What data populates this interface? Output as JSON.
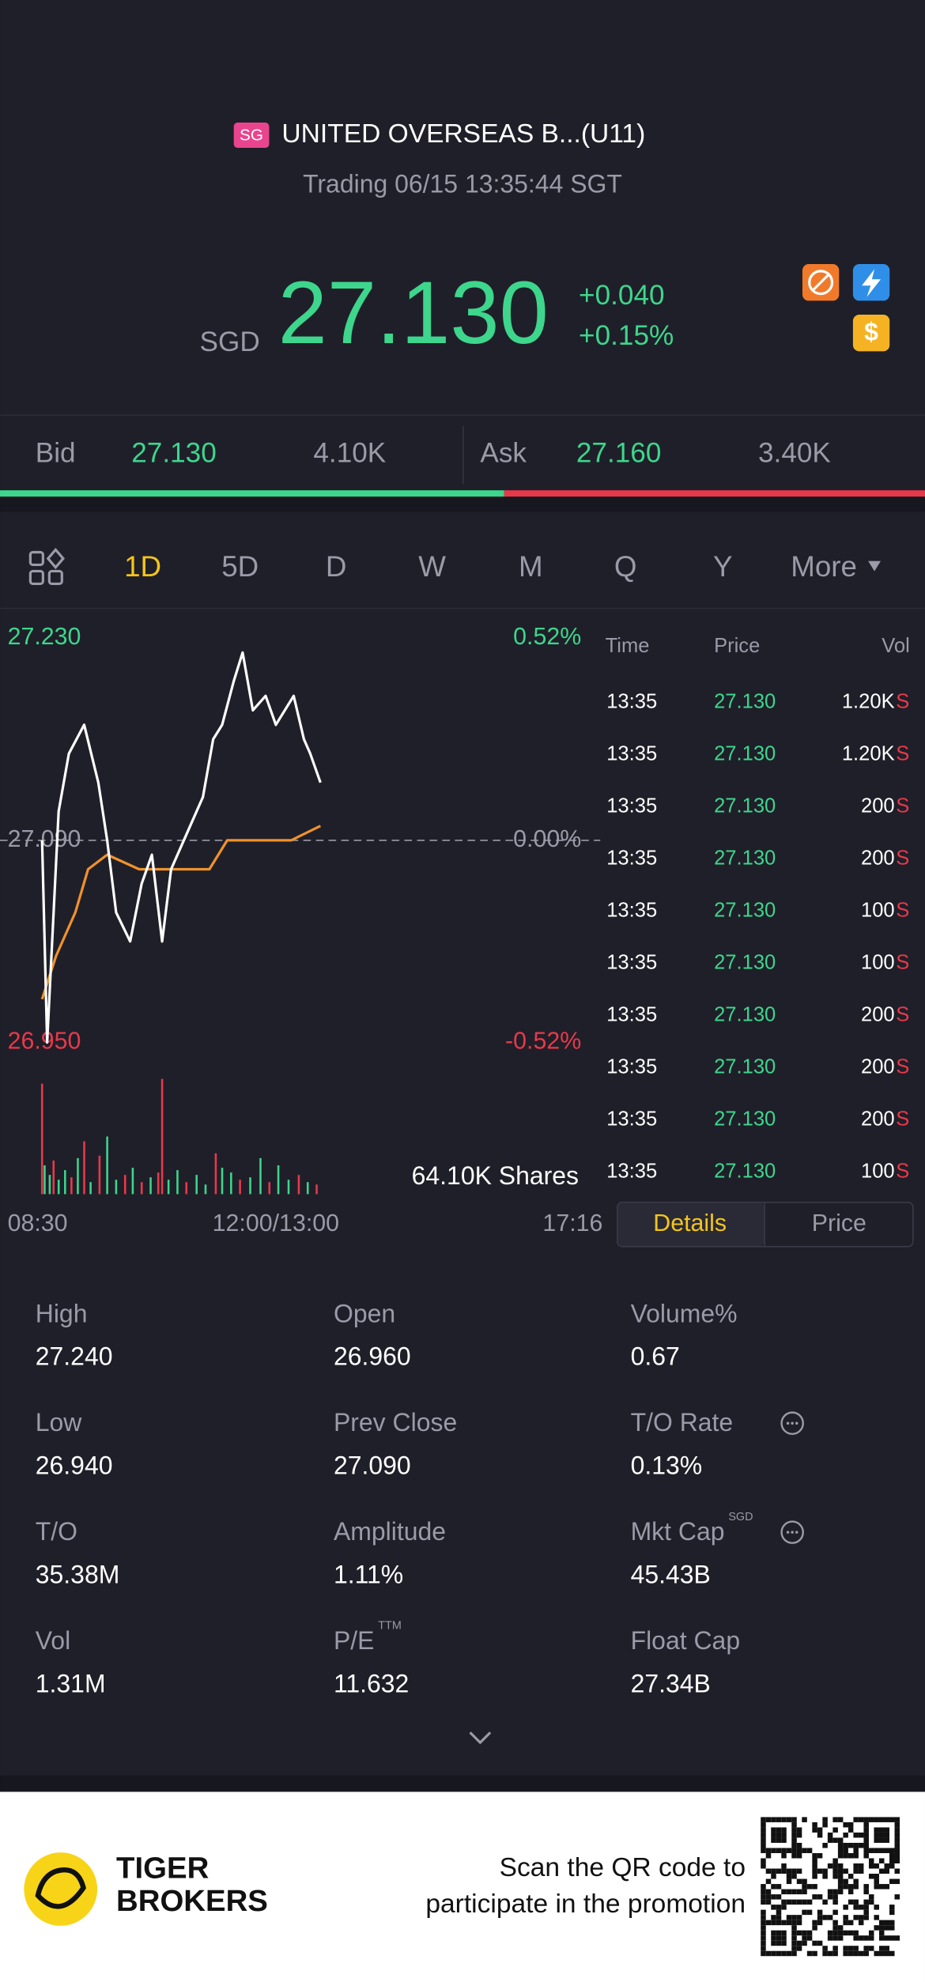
{
  "header": {
    "market": "SG",
    "name": "UNITED OVERSEAS B...(U11)",
    "status": "Trading 06/15 13:35:44 SGT"
  },
  "quote": {
    "currency": "SGD",
    "price": "27.130",
    "change": "+0.040",
    "change_pct": "+0.15%"
  },
  "bid_ask": {
    "bid_label": "Bid",
    "bid": "27.130",
    "bid_size": "4.10K",
    "ask_label": "Ask",
    "ask": "27.160",
    "ask_size": "3.40K"
  },
  "tabs": {
    "items": [
      "1D",
      "5D",
      "D",
      "W",
      "M",
      "Q",
      "Y",
      "More"
    ],
    "active": 0
  },
  "chart_data": {
    "type": "line",
    "xlim": [
      0,
      466
    ],
    "xticks": [
      {
        "value": 0,
        "label": "08:30"
      },
      {
        "value": 210,
        "label": "12:00/13:00"
      },
      {
        "value": 466,
        "label": "17:16"
      }
    ],
    "ylim": [
      26.95,
      27.23
    ],
    "yticks": [
      {
        "value": 27.23,
        "label": "27.230"
      },
      {
        "value": 27.09,
        "label": "27.090"
      },
      {
        "value": 26.95,
        "label": "26.950"
      }
    ],
    "y2lim": [
      -0.52,
      0.52
    ],
    "y2ticks": [
      {
        "value": 0.52,
        "label": "0.52%"
      },
      {
        "value": 0,
        "label": "0.00%"
      },
      {
        "value": -0.52,
        "label": "-0.52%"
      }
    ],
    "series": [
      {
        "name": "Price",
        "color": "#ffffff",
        "x": [
          27,
          31,
          40,
          48,
          60,
          71,
          78,
          85,
          96,
          105,
          113,
          121,
          128,
          143,
          153,
          161,
          168,
          177,
          184,
          192,
          202,
          210,
          224,
          232,
          237,
          245
        ],
        "values": [
          27.09,
          26.95,
          27.11,
          27.15,
          27.17,
          27.13,
          27.09,
          27.04,
          27.02,
          27.06,
          27.08,
          27.02,
          27.07,
          27.1,
          27.12,
          27.16,
          27.17,
          27.2,
          27.22,
          27.18,
          27.19,
          27.17,
          27.19,
          27.16,
          27.15,
          27.13
        ]
      },
      {
        "name": "Average",
        "color": "#f0922b",
        "x": [
          27,
          38,
          53,
          63,
          78,
          103,
          128,
          158,
          172,
          192,
          222,
          245
        ],
        "values": [
          26.98,
          27.01,
          27.04,
          27.07,
          27.08,
          27.07,
          27.07,
          27.07,
          27.09,
          27.09,
          27.09,
          27.1
        ]
      }
    ],
    "volume": {
      "label": "64.10K Shares",
      "ylim": [
        0,
        5
      ],
      "x": [
        27,
        29,
        33,
        36,
        40,
        45,
        50,
        55,
        60,
        65,
        72,
        78,
        85,
        92,
        98,
        105,
        112,
        118,
        121,
        126,
        133,
        140,
        148,
        155,
        163,
        168,
        175,
        182,
        190,
        198,
        205,
        212,
        220,
        228,
        235,
        242
      ],
      "values": [
        4.6,
        1.2,
        0.8,
        1.4,
        0.6,
        1.0,
        0.7,
        1.5,
        2.2,
        0.5,
        1.6,
        2.4,
        0.6,
        0.8,
        1.1,
        0.5,
        0.7,
        0.9,
        4.8,
        0.6,
        1.0,
        0.5,
        0.8,
        0.4,
        1.7,
        1.1,
        0.9,
        0.6,
        0.7,
        1.5,
        0.5,
        1.2,
        0.6,
        0.8,
        0.5,
        0.4
      ],
      "colors": [
        "#e8394a",
        "#3dd68c",
        "#3dd68c",
        "#e8394a",
        "#3dd68c",
        "#3dd68c",
        "#e8394a",
        "#3dd68c",
        "#e8394a",
        "#3dd68c",
        "#e8394a",
        "#3dd68c",
        "#3dd68c",
        "#e8394a",
        "#3dd68c",
        "#e8394a",
        "#3dd68c",
        "#e8394a",
        "#e8394a",
        "#3dd68c",
        "#3dd68c",
        "#e8394a",
        "#3dd68c",
        "#3dd68c",
        "#e8394a",
        "#3dd68c",
        "#3dd68c",
        "#e8394a",
        "#3dd68c",
        "#3dd68c",
        "#e8394a",
        "#3dd68c",
        "#3dd68c",
        "#e8394a",
        "#3dd68c",
        "#e8394a"
      ]
    }
  },
  "trades": {
    "header": [
      "Time",
      "Price",
      "Vol"
    ],
    "rows": [
      [
        "13:35",
        "27.130",
        "1.20K",
        "S"
      ],
      [
        "13:35",
        "27.130",
        "1.20K",
        "S"
      ],
      [
        "13:35",
        "27.130",
        "200",
        "S"
      ],
      [
        "13:35",
        "27.130",
        "200",
        "S"
      ],
      [
        "13:35",
        "27.130",
        "100",
        "S"
      ],
      [
        "13:35",
        "27.130",
        "100",
        "S"
      ],
      [
        "13:35",
        "27.130",
        "200",
        "S"
      ],
      [
        "13:35",
        "27.130",
        "200",
        "S"
      ],
      [
        "13:35",
        "27.130",
        "200",
        "S"
      ],
      [
        "13:35",
        "27.130",
        "100",
        "S"
      ]
    ]
  },
  "detail_tabs": [
    "Details",
    "Price"
  ],
  "stats": [
    [
      {
        "label": "High",
        "value": "27.240"
      },
      {
        "label": "Open",
        "value": "26.960"
      },
      {
        "label": "Volume%",
        "value": "0.67"
      }
    ],
    [
      {
        "label": "Low",
        "value": "26.940"
      },
      {
        "label": "Prev Close",
        "value": "27.090"
      },
      {
        "label": "T/O Rate",
        "value": "0.13%",
        "info": true
      }
    ],
    [
      {
        "label": "T/O",
        "value": "35.38M"
      },
      {
        "label": "Amplitude",
        "value": "1.11%"
      },
      {
        "label": "Mkt Cap",
        "value": "45.43B",
        "sup": "SGD",
        "info": true
      }
    ],
    [
      {
        "label": "Vol",
        "value": "1.31M"
      },
      {
        "label": "P/E",
        "value": "11.632",
        "sup": "TTM"
      },
      {
        "label": "Float Cap",
        "value": "27.34B"
      }
    ]
  ],
  "footer": {
    "brand": [
      "TIGER",
      "BROKERS"
    ],
    "promo": [
      "Scan the QR code to",
      "participate in the promotion"
    ]
  }
}
